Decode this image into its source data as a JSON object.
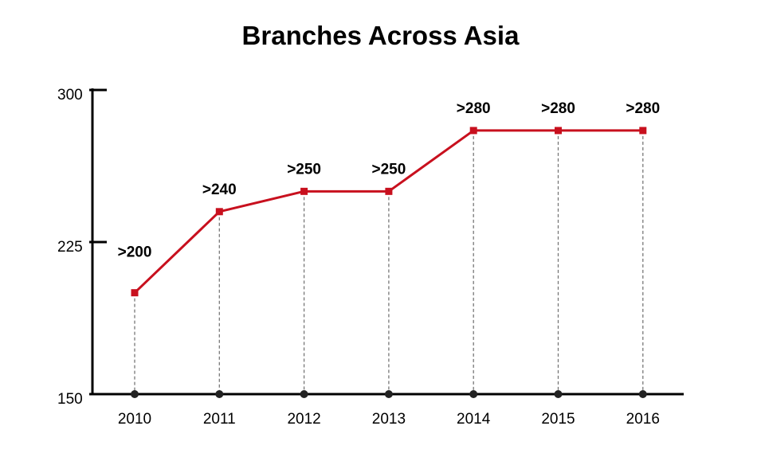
{
  "chart_data": {
    "type": "line",
    "title": "Branches Across Asia",
    "xlabel": "",
    "ylabel": "",
    "categories": [
      "2010",
      "2011",
      "2012",
      "2013",
      "2014",
      "2015",
      "2016"
    ],
    "series": [
      {
        "values": [
          200,
          240,
          250,
          250,
          280,
          280,
          280
        ],
        "labels": [
          ">200",
          ">240",
          ">250",
          ">250",
          ">280",
          ">280",
          ">280"
        ],
        "color": "#c8101e"
      }
    ],
    "ylim": [
      150,
      300
    ],
    "yticks": [
      150,
      225,
      300
    ],
    "ytick_labels": [
      "150",
      "225",
      "300"
    ],
    "grid": false,
    "drop_lines": true,
    "axis_color": "#000000",
    "drop_line_color": "#777777",
    "base_marker_color": "#222222"
  }
}
